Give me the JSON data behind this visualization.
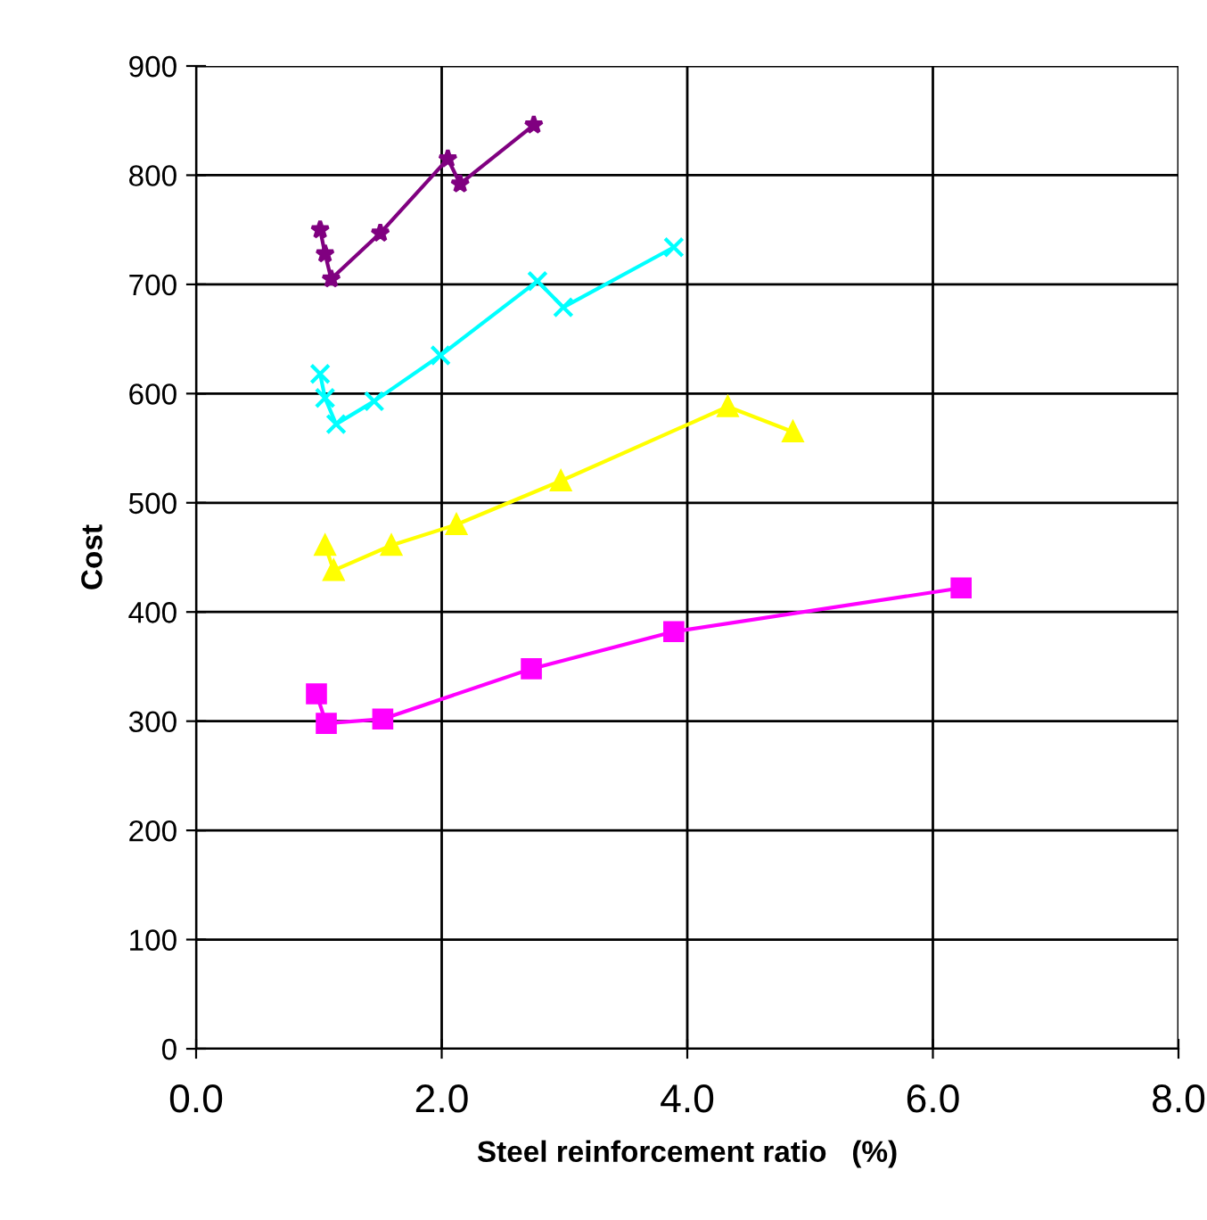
{
  "chart_data": {
    "type": "line",
    "xlabel": "Steel reinforcement ratio   (%)",
    "ylabel": "Cost",
    "xlim": [
      0,
      8
    ],
    "ylim": [
      0,
      900
    ],
    "xticks": [
      {
        "value": 0,
        "label": "0.0"
      },
      {
        "value": 2,
        "label": "2.0"
      },
      {
        "value": 4,
        "label": "4.0"
      },
      {
        "value": 6,
        "label": "6.0"
      },
      {
        "value": 8,
        "label": "8.0"
      }
    ],
    "yticks": [
      0,
      100,
      200,
      300,
      400,
      500,
      600,
      700,
      800,
      900
    ],
    "grid": true,
    "legend": false,
    "series": [
      {
        "color": "#800080",
        "marker": "star",
        "x": [
          1.01,
          1.05,
          1.1,
          1.5,
          2.05,
          2.15,
          2.75
        ],
        "values": [
          750,
          728,
          705,
          747,
          815,
          792,
          846
        ]
      },
      {
        "color": "#00ffff",
        "marker": "cross",
        "x": [
          1.01,
          1.05,
          1.14,
          1.45,
          1.99,
          2.78,
          2.99,
          3.89
        ],
        "values": [
          618,
          596,
          572,
          593,
          635,
          703,
          679,
          734
        ]
      },
      {
        "color": "#ffff00",
        "marker": "triangle",
        "x": [
          1.05,
          1.12,
          1.59,
          2.12,
          2.97,
          4.33,
          4.86
        ],
        "values": [
          461,
          438,
          461,
          480,
          520,
          588,
          565
        ]
      },
      {
        "color": "#ff00ff",
        "marker": "square",
        "x": [
          0.98,
          1.06,
          1.52,
          2.73,
          3.89,
          6.23
        ],
        "values": [
          325,
          298,
          302,
          348,
          382,
          422
        ]
      }
    ]
  }
}
